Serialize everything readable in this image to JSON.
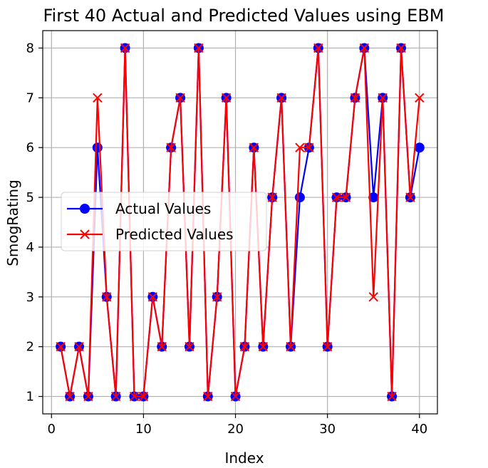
{
  "chart_data": {
    "type": "line",
    "title": "First 40 Actual and Predicted Values using EBM",
    "xlabel": "Index",
    "ylabel": "SmogRating",
    "xlim": [
      -0.95,
      41.95
    ],
    "ylim": [
      0.65,
      8.35
    ],
    "xticks": [
      0,
      10,
      20,
      30,
      40
    ],
    "yticks": [
      1,
      2,
      3,
      4,
      5,
      6,
      7,
      8
    ],
    "grid": true,
    "legend_position": "center-left",
    "x": [
      1,
      2,
      3,
      4,
      5,
      6,
      7,
      8,
      9,
      10,
      11,
      12,
      13,
      14,
      15,
      16,
      17,
      18,
      19,
      20,
      21,
      22,
      23,
      24,
      25,
      26,
      27,
      28,
      29,
      30,
      31,
      32,
      33,
      34,
      35,
      36,
      37,
      38,
      39,
      40
    ],
    "series": [
      {
        "name": "Actual Values",
        "color": "#0000ff",
        "marker": "circle",
        "values": [
          2,
          1,
          2,
          1,
          6,
          3,
          1,
          8,
          1,
          1,
          3,
          2,
          6,
          7,
          2,
          8,
          1,
          3,
          7,
          1,
          2,
          6,
          2,
          5,
          7,
          2,
          5,
          6,
          8,
          2,
          5,
          5,
          7,
          8,
          5,
          7,
          1,
          8,
          5,
          6
        ]
      },
      {
        "name": "Predicted Values",
        "color": "#ff0000",
        "marker": "x",
        "values": [
          2,
          1,
          2,
          1,
          7,
          3,
          1,
          8,
          1,
          1,
          3,
          2,
          6,
          7,
          2,
          8,
          1,
          3,
          7,
          1,
          2,
          6,
          2,
          5,
          7,
          2,
          6,
          6,
          8,
          2,
          5,
          5,
          7,
          8,
          3,
          7,
          1,
          8,
          5,
          7
        ]
      }
    ]
  }
}
